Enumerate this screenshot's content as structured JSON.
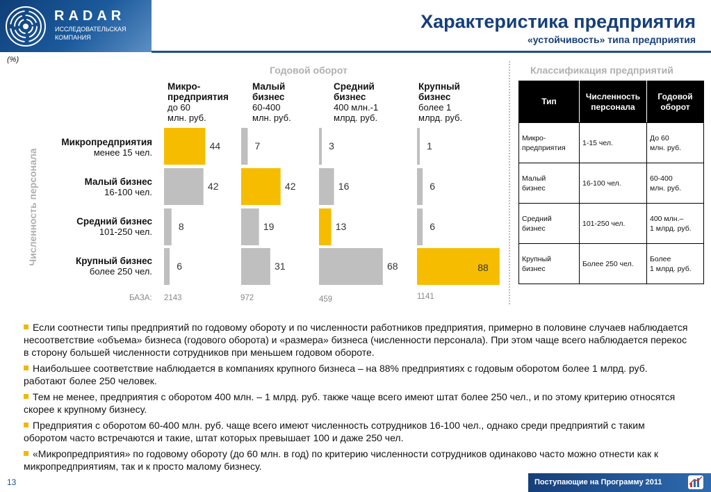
{
  "logo": {
    "name": "RADAR",
    "sub": "ИССЛЕДОВАТЕЛЬСКАЯ КОМПАНИЯ"
  },
  "header": {
    "title": "Характеристика предприятия",
    "subtitle": "«устойчивость» типа предприятия"
  },
  "pct_label": "(%)",
  "section_turnover": "Годовой оборот",
  "section_class": "Классификация предприятий",
  "staff_axis": "Численность персонала",
  "columns": [
    {
      "name": "Микро-\nпредприятия",
      "desc": "до 60\nмлн. руб."
    },
    {
      "name": "Малый\nбизнес",
      "desc": "60-400\nмлн. руб."
    },
    {
      "name": "Средний\nбизнес",
      "desc": "400 млн.-1\nмлрд. руб."
    },
    {
      "name": "Крупный\nбизнес",
      "desc": "более 1\nмлрд. руб."
    }
  ],
  "rows": [
    {
      "name": "Микропредприятия",
      "desc": "менее 15 чел."
    },
    {
      "name": "Малый бизнес",
      "desc": "16-100 чел."
    },
    {
      "name": "Средний бизнес",
      "desc": "101-250 чел."
    },
    {
      "name": "Крупный бизнес",
      "desc": "более 250 чел."
    }
  ],
  "baza_label": "БАЗА:",
  "baza": [
    "2143",
    "972",
    "459",
    "1141"
  ],
  "chart_data": {
    "type": "bar",
    "title": "Годовой оборот",
    "ylabel": "Численность персонала",
    "categories": [
      "Микропредприятия",
      "Малый бизнес",
      "Средний бизнес",
      "Крупный бизнес"
    ],
    "series": [
      {
        "name": "Микро-предприятия",
        "values": [
          44,
          42,
          8,
          6
        ],
        "highlight": 0
      },
      {
        "name": "Малый бизнес",
        "values": [
          7,
          42,
          19,
          31
        ],
        "highlight": 1
      },
      {
        "name": "Средний бизнес",
        "values": [
          3,
          16,
          13,
          68
        ],
        "highlight": 2
      },
      {
        "name": "Крупный бизнес",
        "values": [
          1,
          6,
          6,
          88
        ],
        "highlight": 3
      }
    ],
    "colors": {
      "highlight": "#f6bd00",
      "normal": "#bfbfbf"
    }
  },
  "table": {
    "headers": [
      "Тип",
      "Численность персонала",
      "Годовой оборот"
    ],
    "rows": [
      [
        "Микро-\nпредприятия",
        "1-15 чел.",
        "До 60\nмлн. руб."
      ],
      [
        "Малый\nбизнес",
        "16-100 чел.",
        "60-400\nмлн. руб."
      ],
      [
        "Средний\nбизнес",
        "101-250 чел.",
        "400 млн.–\n1 млрд. руб."
      ],
      [
        "Крупный\nбизнес",
        "Более 250 чел.",
        "Более\n1 млрд. руб."
      ]
    ]
  },
  "bullets": [
    "Если соотнести типы предприятий по годовому обороту и по численности работников предприятия, примерно в половине случаев наблюдается несоответствие «объема» бизнеса (годового оборота) и «размера» бизнеса (численности персонала). При этом чаще всего наблюдается перекос в сторону большей численности сотрудников при меньшем годовом обороте.",
    "Наибольшее соответствие наблюдается в компаниях крупного бизнеса – на 88% предприятиях с годовым оборотом более 1 млрд. руб. работают более 250 человек.",
    "Тем не менее, предприятия с оборотом 400 млн. – 1 млрд. руб. также чаще всего имеют штат более 250 чел., и по этому критерию относятся скорее к крупному бизнесу.",
    "Предприятия с оборотом 60-400 млн. руб. чаще всего имеют численность сотрудников 16-100 чел., однако среди предприятий с таким оборотом часто встречаются и такие, штат которых превышает 100 и даже 250 чел.",
    "«Микропредприятия» по годовому обороту (до 60 млн. в год) по критерию численности сотрудников одинаково часто можно отнести как к микропредприятиям, так и к просто малому бизнесу."
  ],
  "page_number": "13",
  "footer": "Поступающие на Программу 2011"
}
